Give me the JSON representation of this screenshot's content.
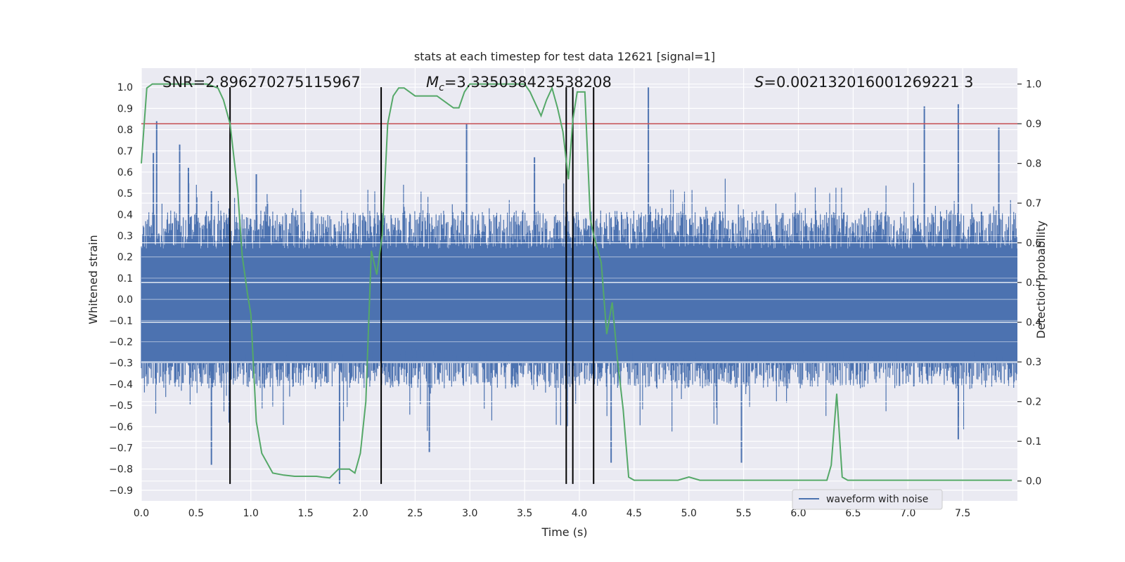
{
  "chart_data": {
    "type": "line",
    "title": "stats at each timestep for test data 12621 [signal=1]",
    "xlabel": "Time (s)",
    "ylabel": "Whitened strain",
    "y2label": "Detection probability",
    "xlim": [
      0,
      8
    ],
    "ylim": [
      -0.95,
      1.09
    ],
    "y2lim": [
      -0.05,
      1.04
    ],
    "xticks": [
      "0.0",
      "0.5",
      "1.0",
      "1.5",
      "2.0",
      "2.5",
      "3.0",
      "3.5",
      "4.0",
      "4.5",
      "5.0",
      "5.5",
      "6.0",
      "6.5",
      "7.0",
      "7.5"
    ],
    "yticks": [
      "-0.9",
      "-0.8",
      "-0.7",
      "-0.6",
      "-0.5",
      "-0.4",
      "-0.3",
      "-0.2",
      "-0.1",
      "0.0",
      "0.1",
      "0.2",
      "0.3",
      "0.4",
      "0.5",
      "0.6",
      "0.7",
      "0.8",
      "0.9",
      "1.0"
    ],
    "y2ticks": [
      "0.0",
      "0.1",
      "0.2",
      "0.3",
      "0.4",
      "0.5",
      "0.6",
      "0.7",
      "0.8",
      "0.9",
      "1.0"
    ],
    "annotations": {
      "snr": "SNR=2.896270275115967",
      "mc_prefix": "M",
      "mc_sub": "c",
      "mc_value": "=3.335038423538208",
      "s_prefix": "S",
      "s_value": "=0.002132016001269221 3"
    },
    "threshold": 0.9,
    "event_lines_x": [
      0.81,
      2.19,
      3.88,
      3.94,
      4.13
    ],
    "event_lines_range": [
      -0.87,
      1.0
    ],
    "strain_envelope": {
      "base_amplitude": 0.42,
      "spikes": [
        {
          "x": 0.14,
          "y": 0.84
        },
        {
          "x": 0.11,
          "y": 0.69
        },
        {
          "x": 0.35,
          "y": 0.73
        },
        {
          "x": 0.43,
          "y": 0.62
        },
        {
          "x": 0.64,
          "y": 0.51
        },
        {
          "x": 1.05,
          "y": 0.59
        },
        {
          "x": 1.81,
          "y": -0.87
        },
        {
          "x": 2.97,
          "y": 0.83
        },
        {
          "x": 3.59,
          "y": 0.67
        },
        {
          "x": 4.63,
          "y": 1.0
        },
        {
          "x": 4.29,
          "y": -0.77
        },
        {
          "x": 7.15,
          "y": 0.91
        },
        {
          "x": 7.46,
          "y": 0.92
        },
        {
          "x": 7.83,
          "y": 0.81
        },
        {
          "x": 0.64,
          "y": -0.78
        },
        {
          "x": 5.48,
          "y": -0.77
        },
        {
          "x": 2.63,
          "y": -0.72
        },
        {
          "x": 7.46,
          "y": -0.66
        }
      ]
    },
    "series": [
      {
        "name": "waveform with noise",
        "color": "#4c72b0"
      },
      {
        "color": "#55a868",
        "x": [
          0.0,
          0.05,
          0.1,
          0.2,
          0.3,
          0.4,
          0.5,
          0.6,
          0.7,
          0.75,
          0.81,
          0.88,
          0.92,
          0.97,
          1.0,
          1.05,
          1.1,
          1.2,
          1.3,
          1.4,
          1.5,
          1.6,
          1.65,
          1.72,
          1.8,
          1.9,
          1.95,
          2.0,
          2.05,
          2.1,
          2.15,
          2.2,
          2.25,
          2.3,
          2.35,
          2.4,
          2.45,
          2.5,
          2.55,
          2.6,
          2.7,
          2.8,
          2.85,
          2.9,
          2.95,
          3.0,
          3.1,
          3.2,
          3.3,
          3.4,
          3.5,
          3.55,
          3.6,
          3.65,
          3.7,
          3.75,
          3.8,
          3.85,
          3.9,
          3.94,
          3.98,
          4.05,
          4.1,
          4.13,
          4.2,
          4.25,
          4.3,
          4.35,
          4.4,
          4.45,
          4.5,
          4.6,
          4.7,
          4.8,
          4.9,
          5.0,
          5.1,
          5.2,
          5.3,
          5.4,
          5.5,
          5.6,
          5.8,
          6.0,
          6.1,
          6.2,
          6.26,
          6.3,
          6.35,
          6.4,
          6.45,
          6.5,
          6.6,
          6.7,
          6.8,
          7.0,
          7.2,
          7.5,
          7.8,
          7.95
        ],
        "y": [
          0.8,
          0.99,
          1.0,
          1.0,
          1.0,
          1.0,
          1.0,
          1.0,
          0.99,
          0.96,
          0.9,
          0.73,
          0.57,
          0.47,
          0.42,
          0.15,
          0.07,
          0.02,
          0.015,
          0.012,
          0.012,
          0.012,
          0.01,
          0.008,
          0.03,
          0.03,
          0.02,
          0.07,
          0.2,
          0.58,
          0.52,
          0.62,
          0.9,
          0.97,
          0.99,
          0.99,
          0.98,
          0.97,
          0.97,
          0.97,
          0.97,
          0.95,
          0.94,
          0.94,
          0.98,
          1.0,
          1.0,
          1.0,
          1.0,
          1.0,
          1.0,
          0.98,
          0.95,
          0.92,
          0.96,
          0.99,
          0.94,
          0.88,
          0.76,
          0.91,
          0.98,
          0.98,
          0.66,
          0.62,
          0.55,
          0.37,
          0.45,
          0.3,
          0.18,
          0.01,
          0.002,
          0.002,
          0.002,
          0.002,
          0.002,
          0.01,
          0.002,
          0.002,
          0.002,
          0.002,
          0.002,
          0.002,
          0.002,
          0.002,
          0.002,
          0.002,
          0.002,
          0.04,
          0.22,
          0.01,
          0.002,
          0.002,
          0.002,
          0.002,
          0.002,
          0.002,
          0.002,
          0.002,
          0.002,
          0.002
        ]
      }
    ],
    "legend": {
      "position": "lower-right-center",
      "entry": "waveform with noise"
    },
    "grid": true
  }
}
